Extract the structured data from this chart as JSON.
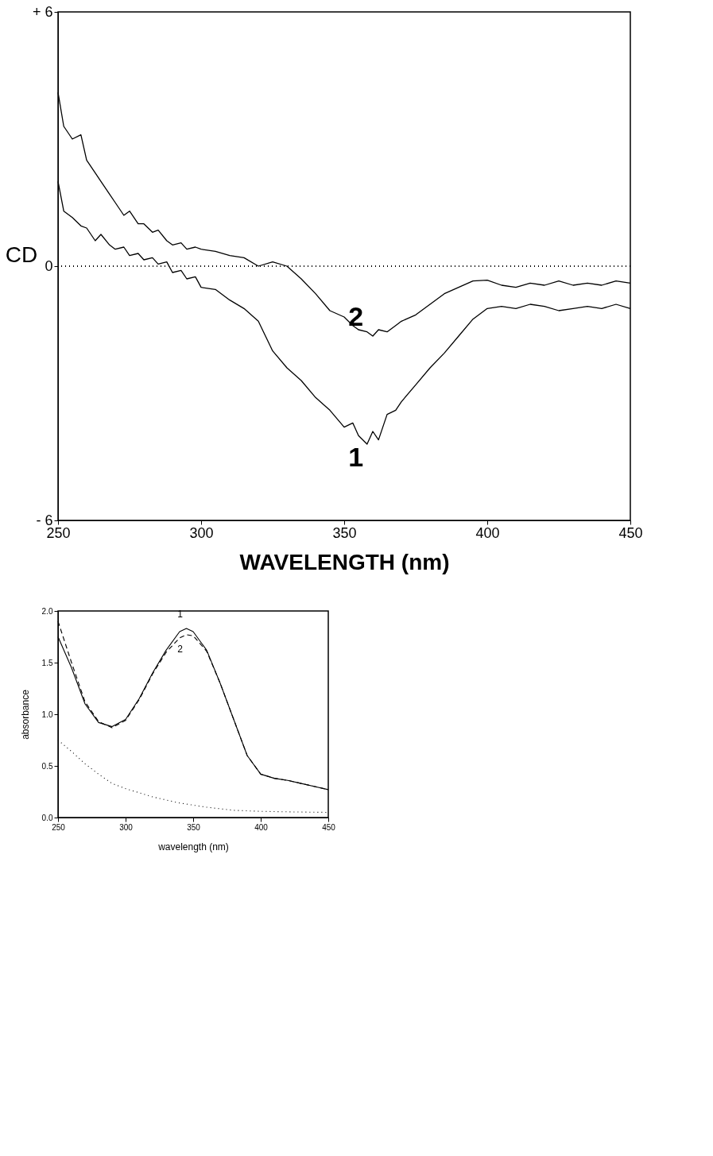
{
  "chart_data": [
    {
      "type": "line",
      "xlabel": "WAVELENGTH (nm)",
      "ylabel": "CD",
      "xlim": [
        250,
        450
      ],
      "xticks": [
        250,
        300,
        350,
        400,
        450
      ],
      "ylim": [
        -6,
        6
      ],
      "yticks": [
        {
          "value": 6,
          "label": "+ 6"
        },
        0,
        {
          "value": -6,
          "label": "- 6"
        }
      ],
      "grid": false,
      "line_style": "solid",
      "ref_lines": [
        {
          "axis": "y",
          "value": 0,
          "line_style": "dotted",
          "color": "#000000"
        }
      ],
      "x": [
        250,
        252,
        255,
        258,
        260,
        263,
        265,
        268,
        270,
        273,
        275,
        278,
        280,
        283,
        285,
        288,
        290,
        293,
        295,
        298,
        300,
        305,
        310,
        315,
        320,
        325,
        330,
        335,
        340,
        345,
        350,
        353,
        355,
        358,
        360,
        362,
        365,
        368,
        370,
        375,
        380,
        385,
        390,
        395,
        400,
        405,
        410,
        415,
        420,
        425,
        430,
        435,
        440,
        445,
        450
      ],
      "series": [
        {
          "name": "1",
          "color": "#000000",
          "values": [
            2.0,
            1.3,
            1.15,
            0.95,
            0.9,
            0.6,
            0.75,
            0.5,
            0.4,
            0.45,
            0.25,
            0.3,
            0.15,
            0.2,
            0.05,
            0.1,
            -0.15,
            -0.1,
            -0.3,
            -0.25,
            -0.5,
            -0.55,
            -0.8,
            -1.0,
            -1.3,
            -2.0,
            -2.4,
            -2.7,
            -3.1,
            -3.4,
            -3.8,
            -3.7,
            -4.0,
            -4.2,
            -3.9,
            -4.1,
            -3.5,
            -3.4,
            -3.2,
            -2.8,
            -2.4,
            -2.05,
            -1.65,
            -1.25,
            -1.0,
            -0.95,
            -1.0,
            -0.9,
            -0.95,
            -1.05,
            -1.0,
            -0.95,
            -1.0,
            -0.9,
            -1.0
          ]
        },
        {
          "name": "2",
          "color": "#000000",
          "values": [
            4.1,
            3.3,
            3.0,
            3.1,
            2.5,
            2.2,
            2.0,
            1.7,
            1.5,
            1.2,
            1.3,
            1.0,
            1.0,
            0.8,
            0.85,
            0.6,
            0.5,
            0.55,
            0.4,
            0.45,
            0.4,
            0.35,
            0.25,
            0.2,
            0.0,
            0.1,
            0.0,
            -0.3,
            -0.65,
            -1.05,
            -1.2,
            -1.4,
            -1.5,
            -1.55,
            -1.65,
            -1.5,
            -1.55,
            -1.4,
            -1.3,
            -1.15,
            -0.9,
            -0.65,
            -0.5,
            -0.35,
            -0.33,
            -0.45,
            -0.5,
            -0.4,
            -0.45,
            -0.35,
            -0.45,
            -0.4,
            -0.45,
            -0.35,
            -0.4
          ]
        }
      ]
    },
    {
      "type": "line",
      "xlabel": "wavelength (nm)",
      "ylabel": "absorbance",
      "xlim": [
        250,
        450
      ],
      "xticks": [
        250,
        300,
        350,
        400,
        450
      ],
      "ylim": [
        0,
        2
      ],
      "yticks": [
        {
          "value": 0,
          "label": "0.0"
        },
        0.5,
        {
          "value": 1,
          "label": "1.0"
        },
        1.5,
        {
          "value": 2,
          "label": "2.0"
        }
      ],
      "grid": false,
      "series": [
        {
          "name": "1",
          "color": "#000000",
          "line_style": "solid",
          "x": [
            250,
            260,
            270,
            280,
            290,
            300,
            310,
            320,
            330,
            340,
            345,
            350,
            360,
            370,
            380,
            390,
            400,
            410,
            420,
            430,
            440,
            450
          ],
          "values": [
            1.75,
            1.45,
            1.1,
            0.92,
            0.88,
            0.95,
            1.15,
            1.4,
            1.62,
            1.8,
            1.83,
            1.8,
            1.62,
            1.3,
            0.95,
            0.6,
            0.42,
            0.38,
            0.36,
            0.33,
            0.3,
            0.27
          ]
        },
        {
          "name": "2",
          "color": "#000000",
          "line_style": "dashed",
          "x": [
            250,
            260,
            270,
            280,
            290,
            300,
            310,
            320,
            330,
            340,
            345,
            350,
            360,
            370,
            380,
            390,
            400,
            410,
            420,
            430,
            440,
            450
          ],
          "values": [
            1.9,
            1.5,
            1.12,
            0.93,
            0.87,
            0.94,
            1.14,
            1.39,
            1.6,
            1.74,
            1.77,
            1.76,
            1.61,
            1.3,
            0.95,
            0.6,
            0.42,
            0.38,
            0.36,
            0.33,
            0.3,
            0.27
          ]
        },
        {
          "color": "#000000",
          "line_style": "dotted",
          "x": [
            250,
            260,
            270,
            280,
            290,
            300,
            310,
            320,
            330,
            340,
            350,
            360,
            380,
            400,
            420,
            450
          ],
          "values": [
            0.75,
            0.64,
            0.52,
            0.42,
            0.33,
            0.28,
            0.24,
            0.2,
            0.17,
            0.14,
            0.12,
            0.1,
            0.07,
            0.06,
            0.055,
            0.05
          ]
        }
      ]
    }
  ]
}
